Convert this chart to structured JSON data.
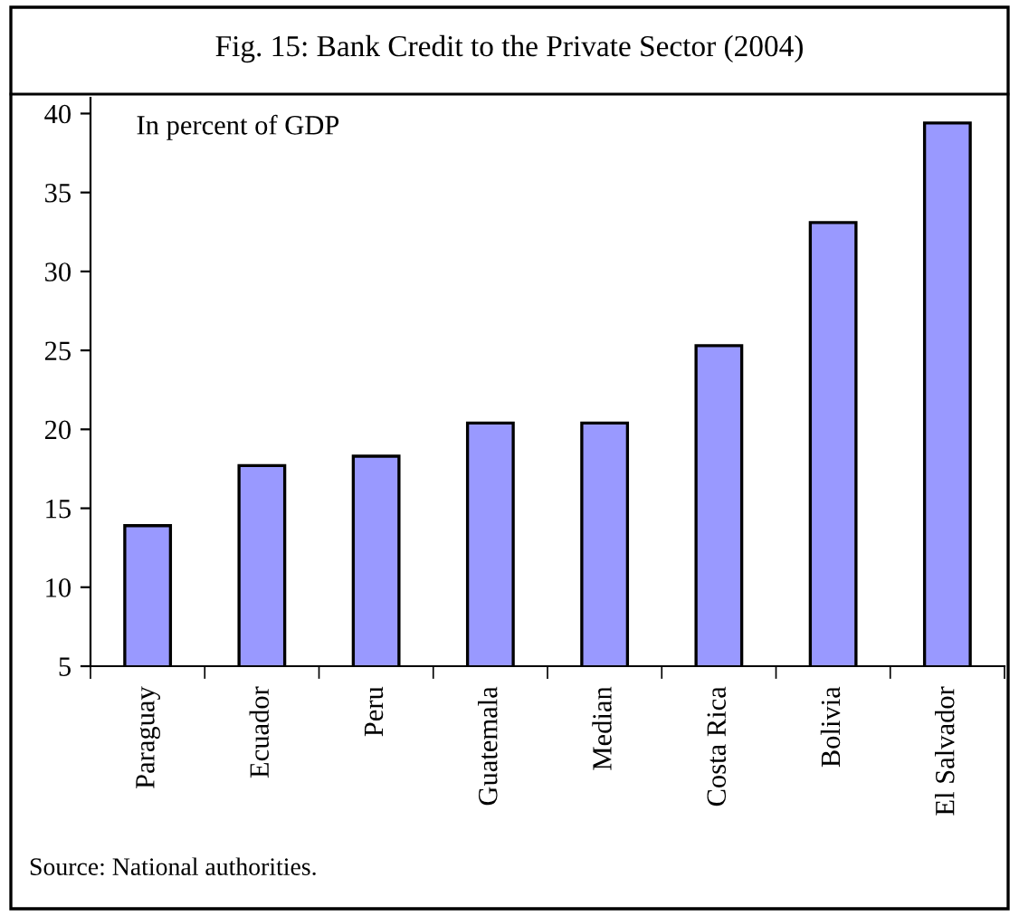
{
  "chart_data": {
    "type": "bar",
    "title": "Fig. 15: Bank Credit to the Private Sector (2004)",
    "categories": [
      "Paraguay",
      "Ecuador",
      "Peru",
      "Guatemala",
      "Median",
      "Costa Rica",
      "Bolivia",
      "El Salvador"
    ],
    "values": [
      13.9,
      17.7,
      18.3,
      20.4,
      20.4,
      25.3,
      33.1,
      39.4
    ],
    "color": "#9999ff",
    "ylim": [
      5,
      41
    ],
    "yticks": [
      5,
      10,
      15,
      20,
      25,
      30,
      35,
      40
    ],
    "grid": false,
    "annotations": [
      "In percent of GDP",
      "Source: National authorities."
    ]
  }
}
